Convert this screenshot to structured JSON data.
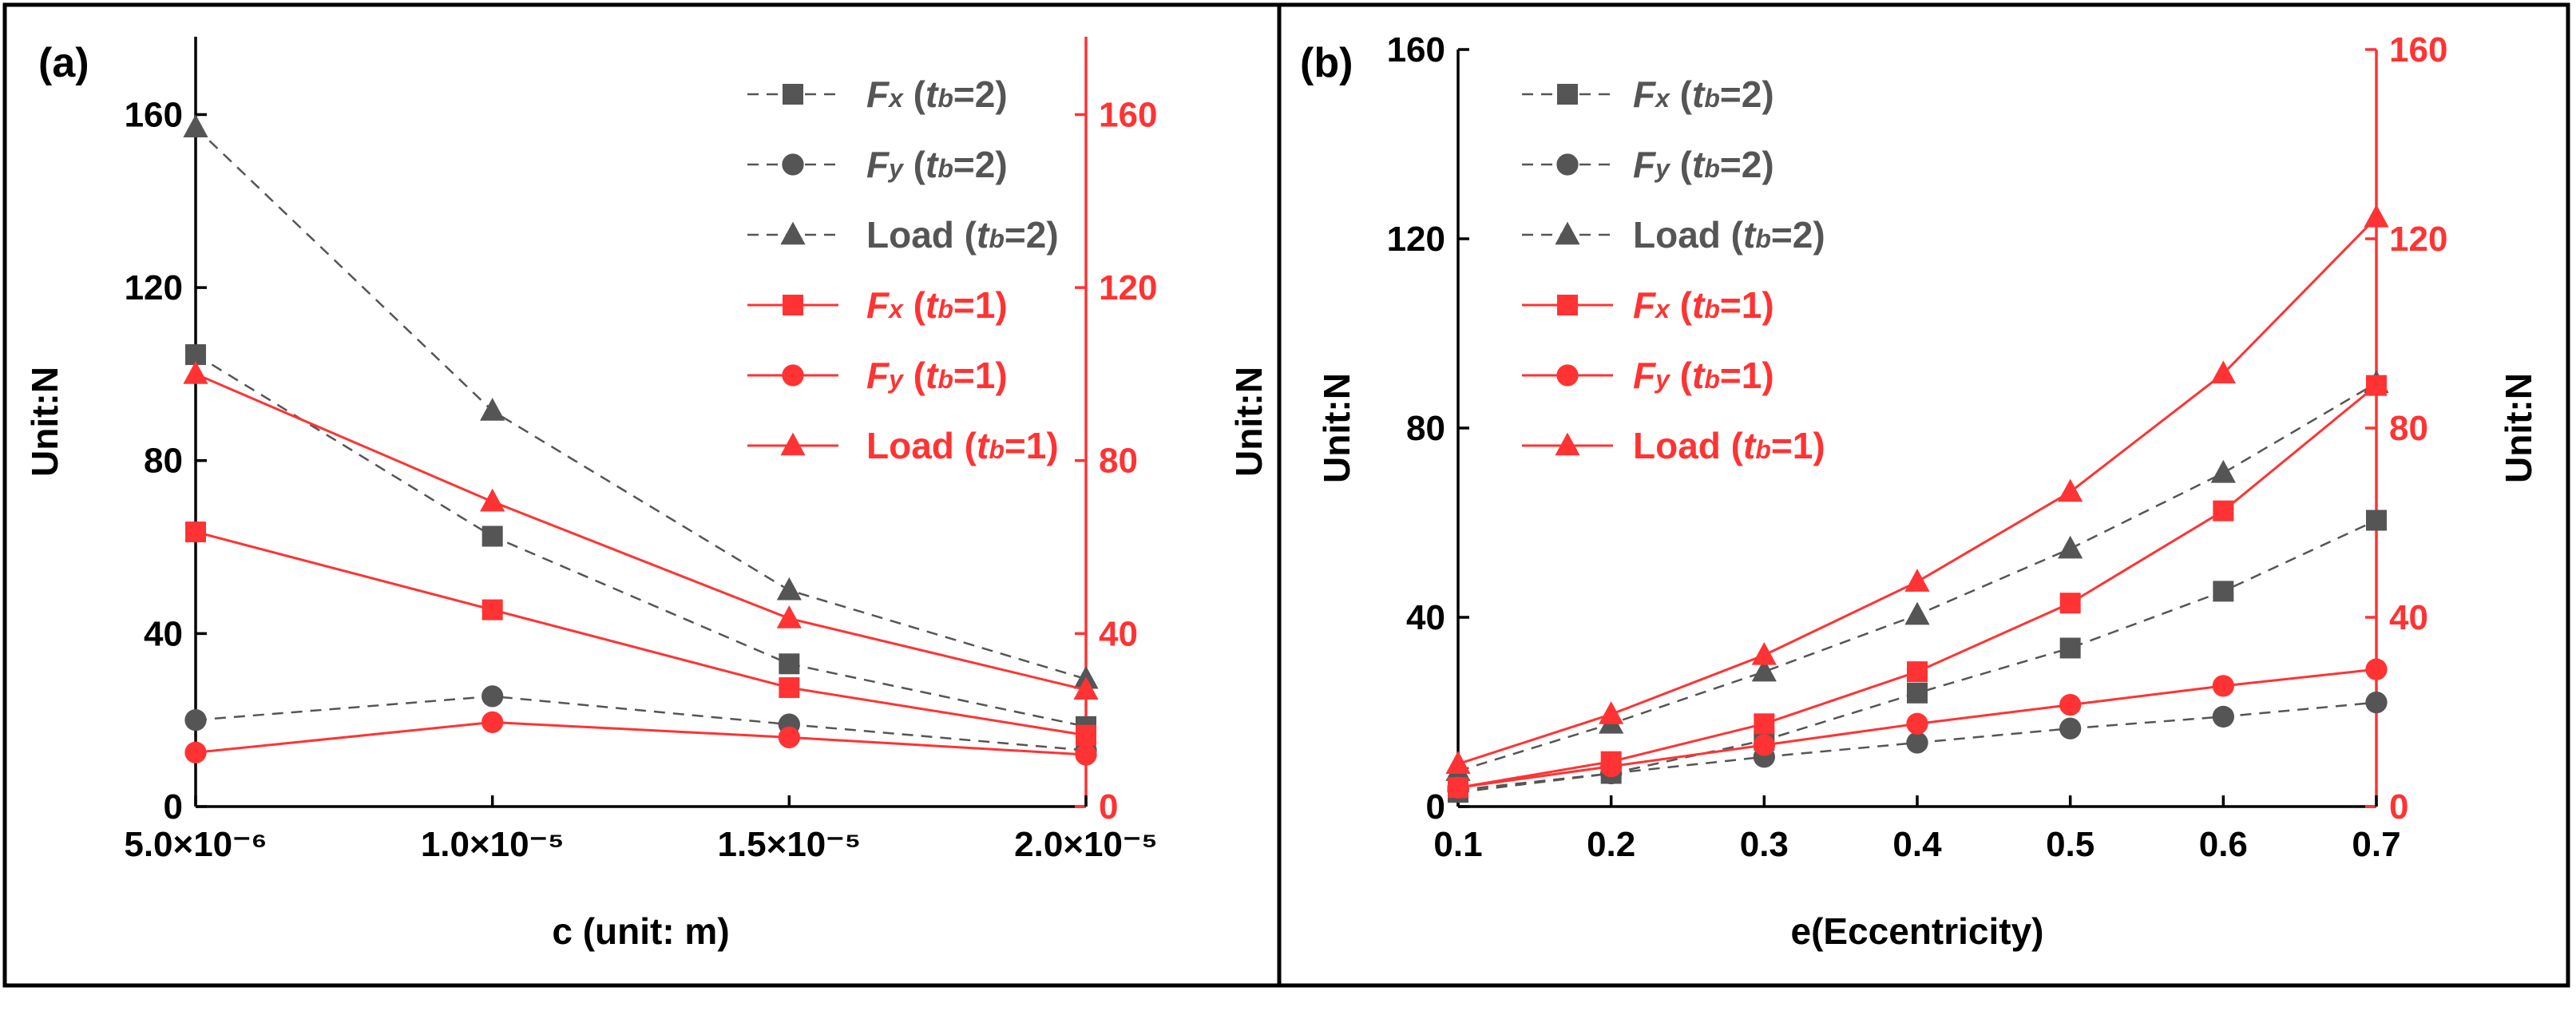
{
  "chart_data": [
    {
      "type": "line",
      "panel_label": "(a)",
      "xlabel": "c (unit: m)",
      "ylabel_left": "Unit:N",
      "ylabel_right": "Unit:N",
      "x": [
        5e-06,
        1e-05,
        1.5e-05,
        2e-05
      ],
      "xlim": [
        5e-06,
        2e-05
      ],
      "x_ticks": [
        5e-06,
        1e-05,
        1.5e-05,
        2e-05
      ],
      "x_tick_labels": [
        "5.0×10⁻⁶",
        "1.0×10⁻⁵",
        "1.5×10⁻⁵",
        "2.0×10⁻⁵"
      ],
      "ylim": [
        0,
        178
      ],
      "y_ticks": [
        0,
        40,
        80,
        120,
        160
      ],
      "y_tick_labels": [
        "0",
        "40",
        "80",
        "120",
        "160"
      ],
      "legend_position": "top-right",
      "series": [
        {
          "name": "Fx (tb=2)",
          "name_main": "F",
          "name_sub1": "x",
          "name_open": " (",
          "name_t": "t",
          "name_sub2": "b",
          "name_rest": "=2)",
          "color": "#555555",
          "style": "dashed",
          "marker": "square",
          "values": [
            104.5,
            62.5,
            33,
            18.5
          ]
        },
        {
          "name": "Fy (tb=2)",
          "name_main": "F",
          "name_sub1": "y",
          "name_open": " (",
          "name_t": "t",
          "name_sub2": "b",
          "name_rest": "=2)",
          "color": "#555555",
          "style": "dashed",
          "marker": "circle",
          "values": [
            20,
            25.5,
            19,
            13
          ]
        },
        {
          "name": "Load (tb=2)",
          "name_main": "Load",
          "name_sub1": "",
          "name_open": " (",
          "name_t": "t",
          "name_sub2": "b",
          "name_rest": "=2)",
          "color": "#555555",
          "style": "dashed",
          "marker": "triangle",
          "values": [
            157,
            91.5,
            50,
            29.5
          ]
        },
        {
          "name": "Fx (tb=1)",
          "name_main": "F",
          "name_sub1": "x",
          "name_open": " (",
          "name_t": "t",
          "name_sub2": "b",
          "name_rest": "=1)",
          "color": "#ff3333",
          "style": "solid",
          "marker": "square",
          "values": [
            63.5,
            45.5,
            27.5,
            16.5
          ]
        },
        {
          "name": "Fy (tb=1)",
          "name_main": "F",
          "name_sub1": "y",
          "name_open": " (",
          "name_t": "t",
          "name_sub2": "b",
          "name_rest": "=1)",
          "color": "#ff3333",
          "style": "solid",
          "marker": "circle",
          "values": [
            12.5,
            19.5,
            16,
            12
          ]
        },
        {
          "name": "Load (tb=1)",
          "name_main": "Load",
          "name_sub1": "",
          "name_open": " (",
          "name_t": "t",
          "name_sub2": "b",
          "name_rest": "=1)",
          "color": "#ff3333",
          "style": "solid",
          "marker": "triangle",
          "values": [
            100,
            70.5,
            43.5,
            27
          ]
        }
      ]
    },
    {
      "type": "line",
      "panel_label": "(b)",
      "xlabel": "e(Eccentricity)",
      "ylabel_left": "Unit:N",
      "ylabel_right": "Unit:N",
      "x": [
        0.1,
        0.2,
        0.3,
        0.4,
        0.5,
        0.6,
        0.7
      ],
      "xlim": [
        0.1,
        0.7
      ],
      "x_ticks": [
        0.1,
        0.2,
        0.3,
        0.4,
        0.5,
        0.6,
        0.7
      ],
      "x_tick_labels": [
        "0.1",
        "0.2",
        "0.3",
        "0.4",
        "0.5",
        "0.6",
        "0.7"
      ],
      "ylim": [
        0,
        160
      ],
      "y_ticks": [
        0,
        40,
        80,
        120,
        160
      ],
      "y_tick_labels": [
        "0",
        "40",
        "80",
        "120",
        "160"
      ],
      "legend_position": "top-left",
      "series": [
        {
          "name": "Fx (tb=2)",
          "name_main": "F",
          "name_sub1": "x",
          "name_open": " (",
          "name_t": "t",
          "name_sub2": "b",
          "name_rest": "=2)",
          "color": "#555555",
          "style": "dashed",
          "marker": "square",
          "values": [
            3,
            7,
            14,
            24,
            33.5,
            45.5,
            60.5
          ]
        },
        {
          "name": "Fy (tb=2)",
          "name_main": "F",
          "name_sub1": "y",
          "name_open": " (",
          "name_t": "t",
          "name_sub2": "b",
          "name_rest": "=2)",
          "color": "#555555",
          "style": "dashed",
          "marker": "circle",
          "values": [
            3.5,
            7,
            10.5,
            13.5,
            16.5,
            19,
            22
          ]
        },
        {
          "name": "Load (tb=2)",
          "name_main": "Load",
          "name_sub1": "",
          "name_open": " (",
          "name_t": "t",
          "name_sub2": "b",
          "name_rest": "=2)",
          "color": "#555555",
          "style": "dashed",
          "marker": "triangle",
          "values": [
            7.5,
            17.5,
            28.5,
            40.5,
            54.5,
            70.5,
            89.5
          ]
        },
        {
          "name": "Fx (tb=1)",
          "name_main": "F",
          "name_sub1": "x",
          "name_open": " (",
          "name_t": "t",
          "name_sub2": "b",
          "name_rest": "=1)",
          "color": "#ff3333",
          "style": "solid",
          "marker": "square",
          "values": [
            4,
            9.5,
            17.5,
            28.5,
            43,
            62.5,
            89
          ]
        },
        {
          "name": "Fy (tb=1)",
          "name_main": "F",
          "name_sub1": "y",
          "name_open": " (",
          "name_t": "t",
          "name_sub2": "b",
          "name_rest": "=1)",
          "color": "#ff3333",
          "style": "solid",
          "marker": "circle",
          "values": [
            4,
            8.5,
            13,
            17.5,
            21.5,
            25.5,
            29
          ]
        },
        {
          "name": "Load (tb=1)",
          "name_main": "Load",
          "name_sub1": "",
          "name_open": " (",
          "name_t": "t",
          "name_sub2": "b",
          "name_rest": "=1)",
          "color": "#ff3333",
          "style": "solid",
          "marker": "triangle",
          "values": [
            9,
            19.5,
            32,
            47.5,
            66.5,
            91.5,
            124.5
          ]
        }
      ]
    }
  ]
}
